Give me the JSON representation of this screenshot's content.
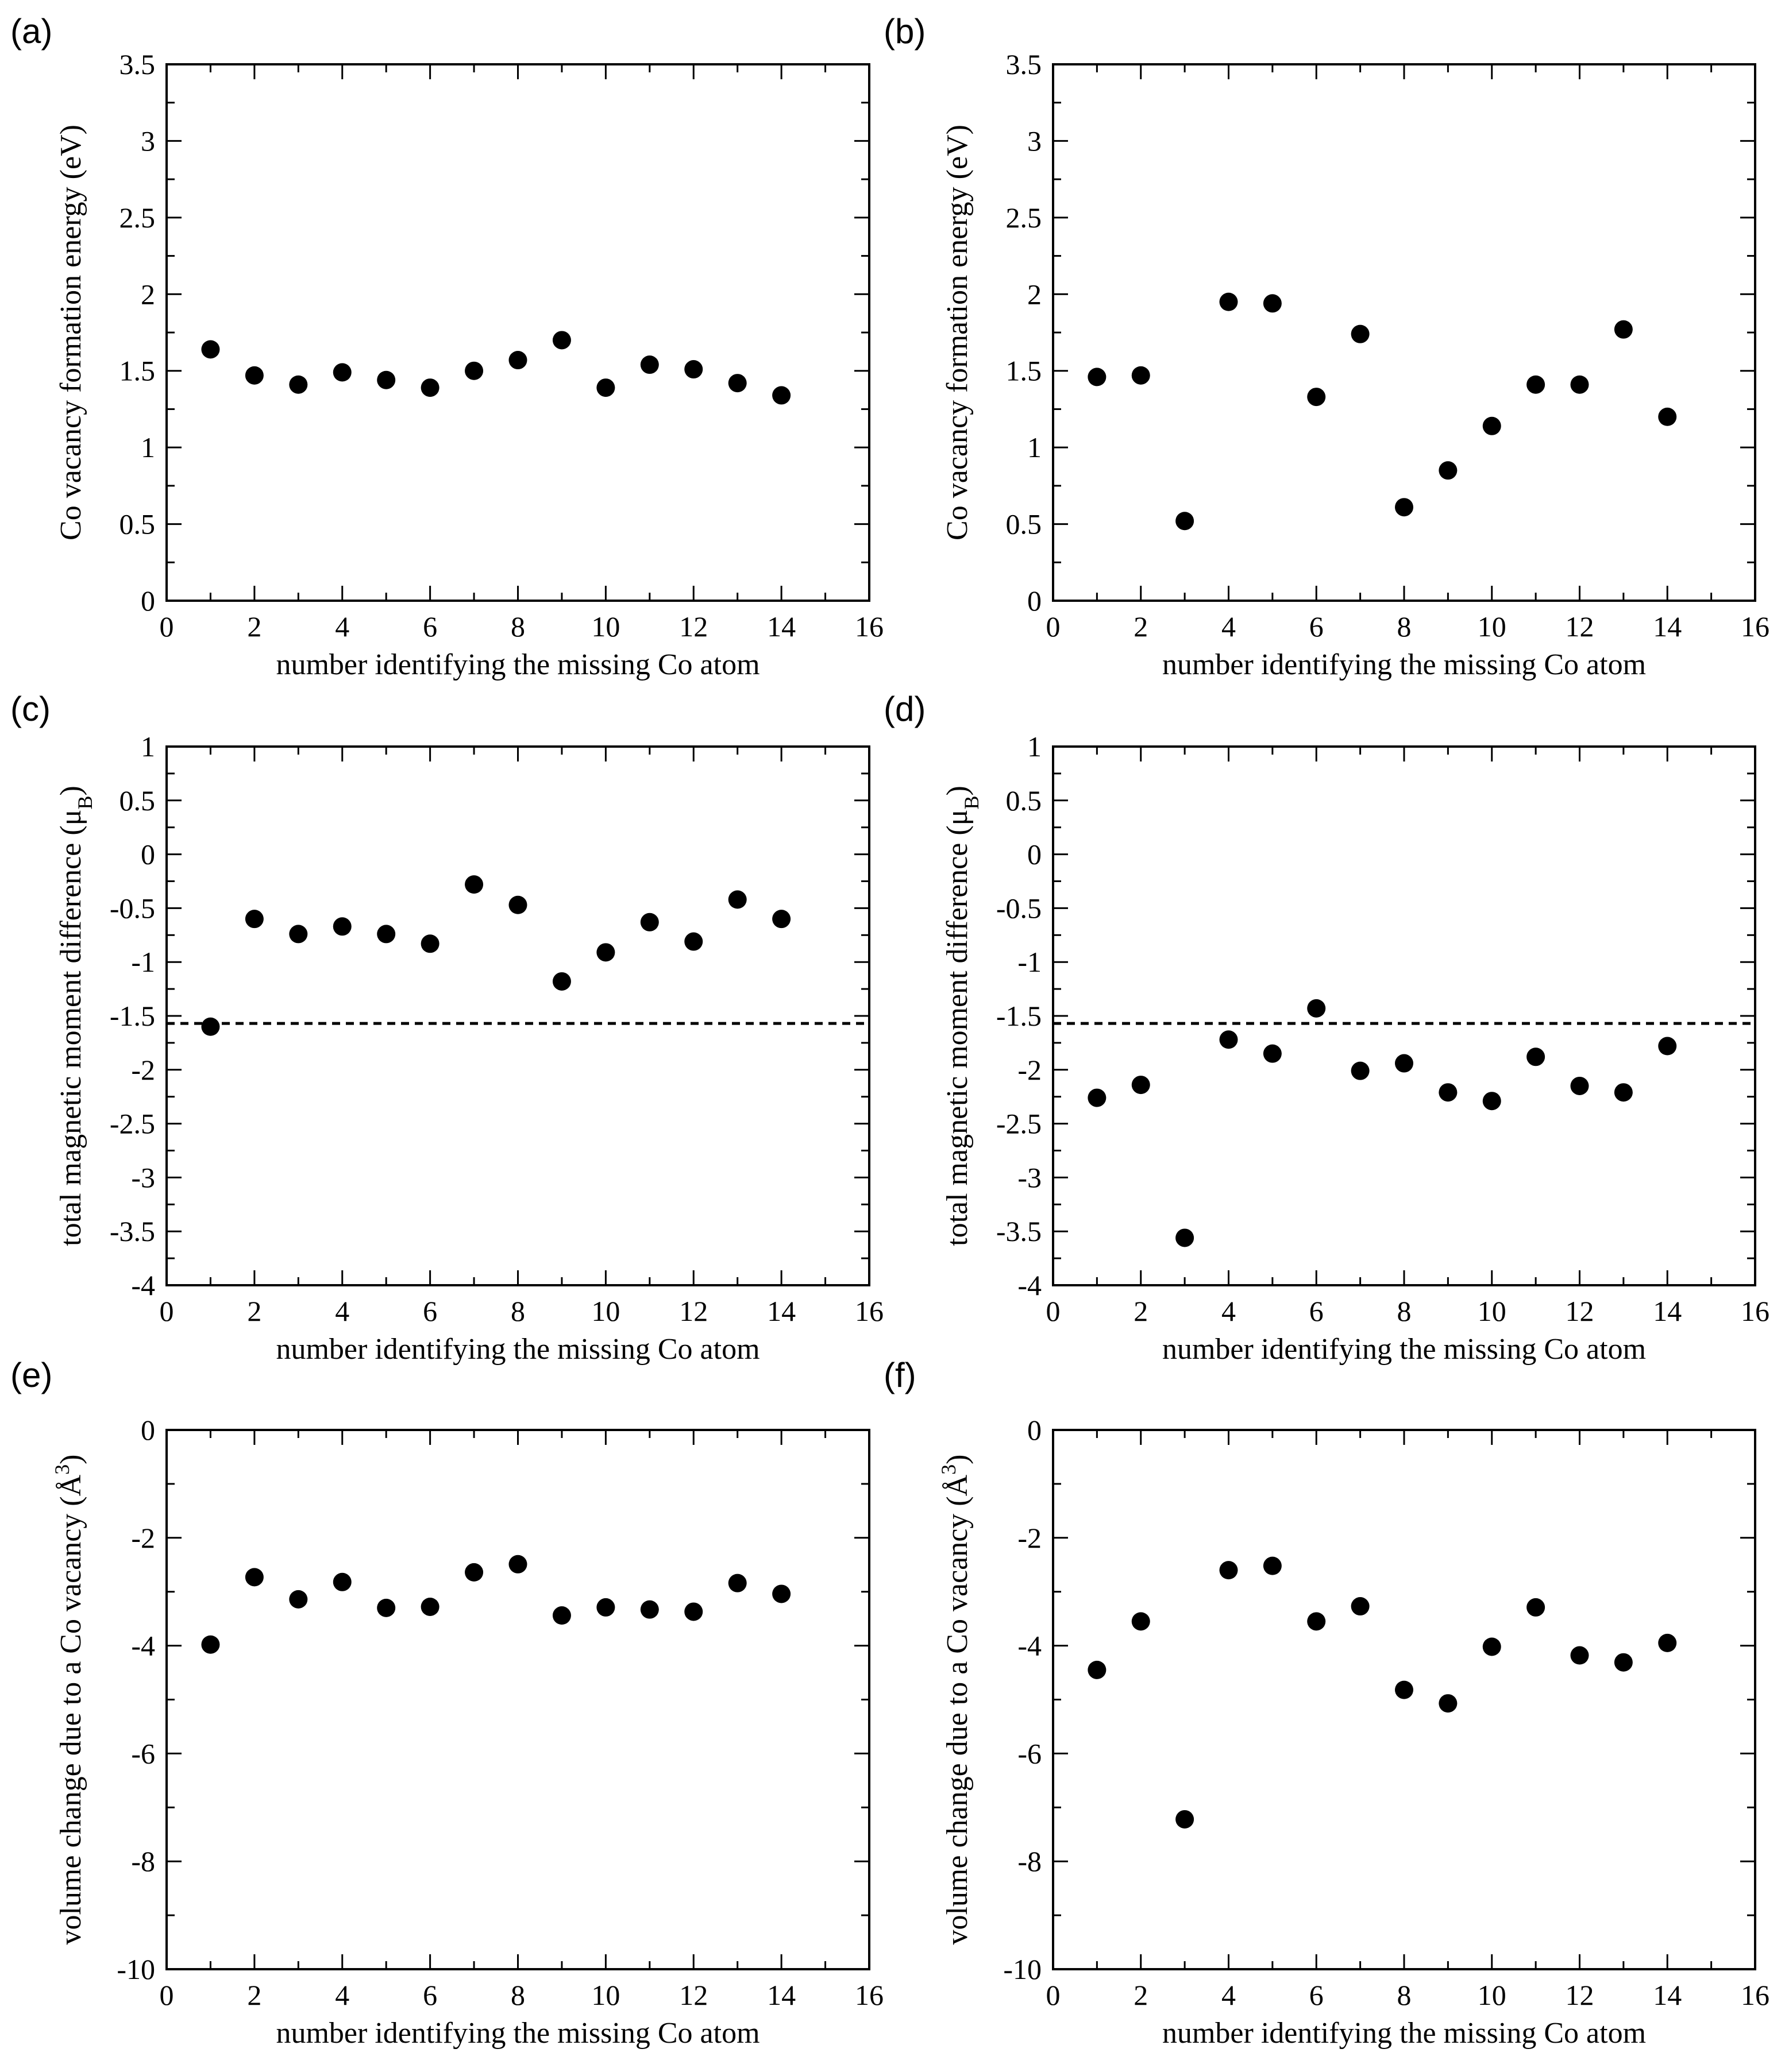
{
  "figure": {
    "panels": [
      {
        "label": "(a)"
      },
      {
        "label": "(b)"
      },
      {
        "label": "(c)"
      },
      {
        "label": "(d)"
      },
      {
        "label": "(e)"
      },
      {
        "label": "(f)"
      }
    ]
  },
  "chart_data": [
    {
      "id": "a",
      "type": "scatter",
      "xlabel": "number identifying the missing Co atom",
      "ylabel": "Co vacancy formation energy (eV)",
      "xlim": [
        0,
        16
      ],
      "ylim": [
        0,
        3.5
      ],
      "xticks": [
        "0",
        "2",
        "4",
        "6",
        "8",
        "10",
        "12",
        "14",
        "16"
      ],
      "yticks": [
        "0",
        "0.5",
        "1",
        "1.5",
        "2",
        "2.5",
        "3",
        "3.5"
      ],
      "x": [
        1,
        2,
        3,
        4,
        5,
        6,
        7,
        8,
        9,
        10,
        11,
        12,
        13,
        14
      ],
      "y": [
        1.64,
        1.47,
        1.41,
        1.49,
        1.44,
        1.39,
        1.5,
        1.57,
        1.7,
        1.39,
        1.54,
        1.51,
        1.42,
        1.34
      ]
    },
    {
      "id": "b",
      "type": "scatter",
      "xlabel": "number identifying the missing Co atom",
      "ylabel": "Co vacancy formation energy (eV)",
      "xlim": [
        0,
        16
      ],
      "ylim": [
        0,
        3.5
      ],
      "xticks": [
        "0",
        "2",
        "4",
        "6",
        "8",
        "10",
        "12",
        "14",
        "16"
      ],
      "yticks": [
        "0",
        "0.5",
        "1",
        "1.5",
        "2",
        "2.5",
        "3",
        "3.5"
      ],
      "x": [
        1,
        2,
        3,
        4,
        5,
        6,
        7,
        8,
        9,
        10,
        11,
        12,
        13,
        14
      ],
      "y": [
        1.46,
        1.47,
        0.52,
        1.95,
        1.94,
        1.33,
        1.74,
        0.61,
        0.85,
        1.14,
        1.41,
        1.41,
        1.77,
        1.2
      ]
    },
    {
      "id": "c",
      "type": "scatter",
      "xlabel": "number identifying the missing Co atom",
      "ylabel": "total magnetic moment difference (μ",
      "ylabel_sub": "B",
      "ylabel_end": ")",
      "xlim": [
        0,
        16
      ],
      "ylim": [
        -4,
        1
      ],
      "xticks": [
        "0",
        "2",
        "4",
        "6",
        "8",
        "10",
        "12",
        "14",
        "16"
      ],
      "yticks": [
        "-4",
        "-3.5",
        "-3",
        "-2.5",
        "-2",
        "-1.5",
        "-1",
        "-0.5",
        "0",
        "0.5",
        "1"
      ],
      "reference_line": -1.57,
      "x": [
        1,
        2,
        3,
        4,
        5,
        6,
        7,
        8,
        9,
        10,
        11,
        12,
        13,
        14
      ],
      "y": [
        -1.6,
        -0.6,
        -0.74,
        -0.67,
        -0.74,
        -0.83,
        -0.28,
        -0.47,
        -1.18,
        -0.91,
        -0.63,
        -0.81,
        -0.42,
        -0.6
      ]
    },
    {
      "id": "d",
      "type": "scatter",
      "xlabel": "number identifying the missing Co atom",
      "ylabel": "total magnetic moment difference (μ",
      "ylabel_sub": "B",
      "ylabel_end": ")",
      "xlim": [
        0,
        16
      ],
      "ylim": [
        -4,
        1
      ],
      "xticks": [
        "0",
        "2",
        "4",
        "6",
        "8",
        "10",
        "12",
        "14",
        "16"
      ],
      "yticks": [
        "-4",
        "-3.5",
        "-3",
        "-2.5",
        "-2",
        "-1.5",
        "-1",
        "-0.5",
        "0",
        "0.5",
        "1"
      ],
      "reference_line": -1.57,
      "x": [
        1,
        2,
        3,
        4,
        5,
        6,
        7,
        8,
        9,
        10,
        11,
        12,
        13,
        14
      ],
      "y": [
        -2.26,
        -2.14,
        -3.56,
        -1.72,
        -1.85,
        -1.43,
        -2.01,
        -1.94,
        -2.21,
        -2.29,
        -1.88,
        -2.15,
        -2.21,
        -1.78
      ]
    },
    {
      "id": "e",
      "type": "scatter",
      "xlabel": "number identifying the missing Co atom",
      "ylabel": "volume change due to a Co vacancy (Å",
      "ylabel_sup": "3",
      "ylabel_end": ")",
      "xlim": [
        0,
        16
      ],
      "ylim": [
        -10,
        0
      ],
      "xticks": [
        "0",
        "2",
        "4",
        "6",
        "8",
        "10",
        "12",
        "14",
        "16"
      ],
      "yticks": [
        "-10",
        "-8",
        "-6",
        "-4",
        "-2",
        "0"
      ],
      "x": [
        1,
        2,
        3,
        4,
        5,
        6,
        7,
        8,
        9,
        10,
        11,
        12,
        13,
        14
      ],
      "y": [
        -3.98,
        -2.73,
        -3.14,
        -2.82,
        -3.3,
        -3.28,
        -2.64,
        -2.49,
        -3.44,
        -3.29,
        -3.33,
        -3.37,
        -2.84,
        -3.04
      ]
    },
    {
      "id": "f",
      "type": "scatter",
      "xlabel": "number identifying the missing Co atom",
      "ylabel": "volume change due to a Co vacancy (Å",
      "ylabel_sup": "3",
      "ylabel_end": ")",
      "xlim": [
        0,
        16
      ],
      "ylim": [
        -10,
        0
      ],
      "xticks": [
        "0",
        "2",
        "4",
        "6",
        "8",
        "10",
        "12",
        "14",
        "16"
      ],
      "yticks": [
        "-10",
        "-8",
        "-6",
        "-4",
        "-2",
        "0"
      ],
      "x": [
        1,
        2,
        3,
        4,
        5,
        6,
        7,
        8,
        9,
        10,
        11,
        12,
        13,
        14
      ],
      "y": [
        -4.45,
        -3.55,
        -7.22,
        -2.6,
        -2.52,
        -3.55,
        -3.27,
        -4.82,
        -5.07,
        -4.02,
        -3.29,
        -4.18,
        -4.31,
        -3.95
      ]
    }
  ]
}
